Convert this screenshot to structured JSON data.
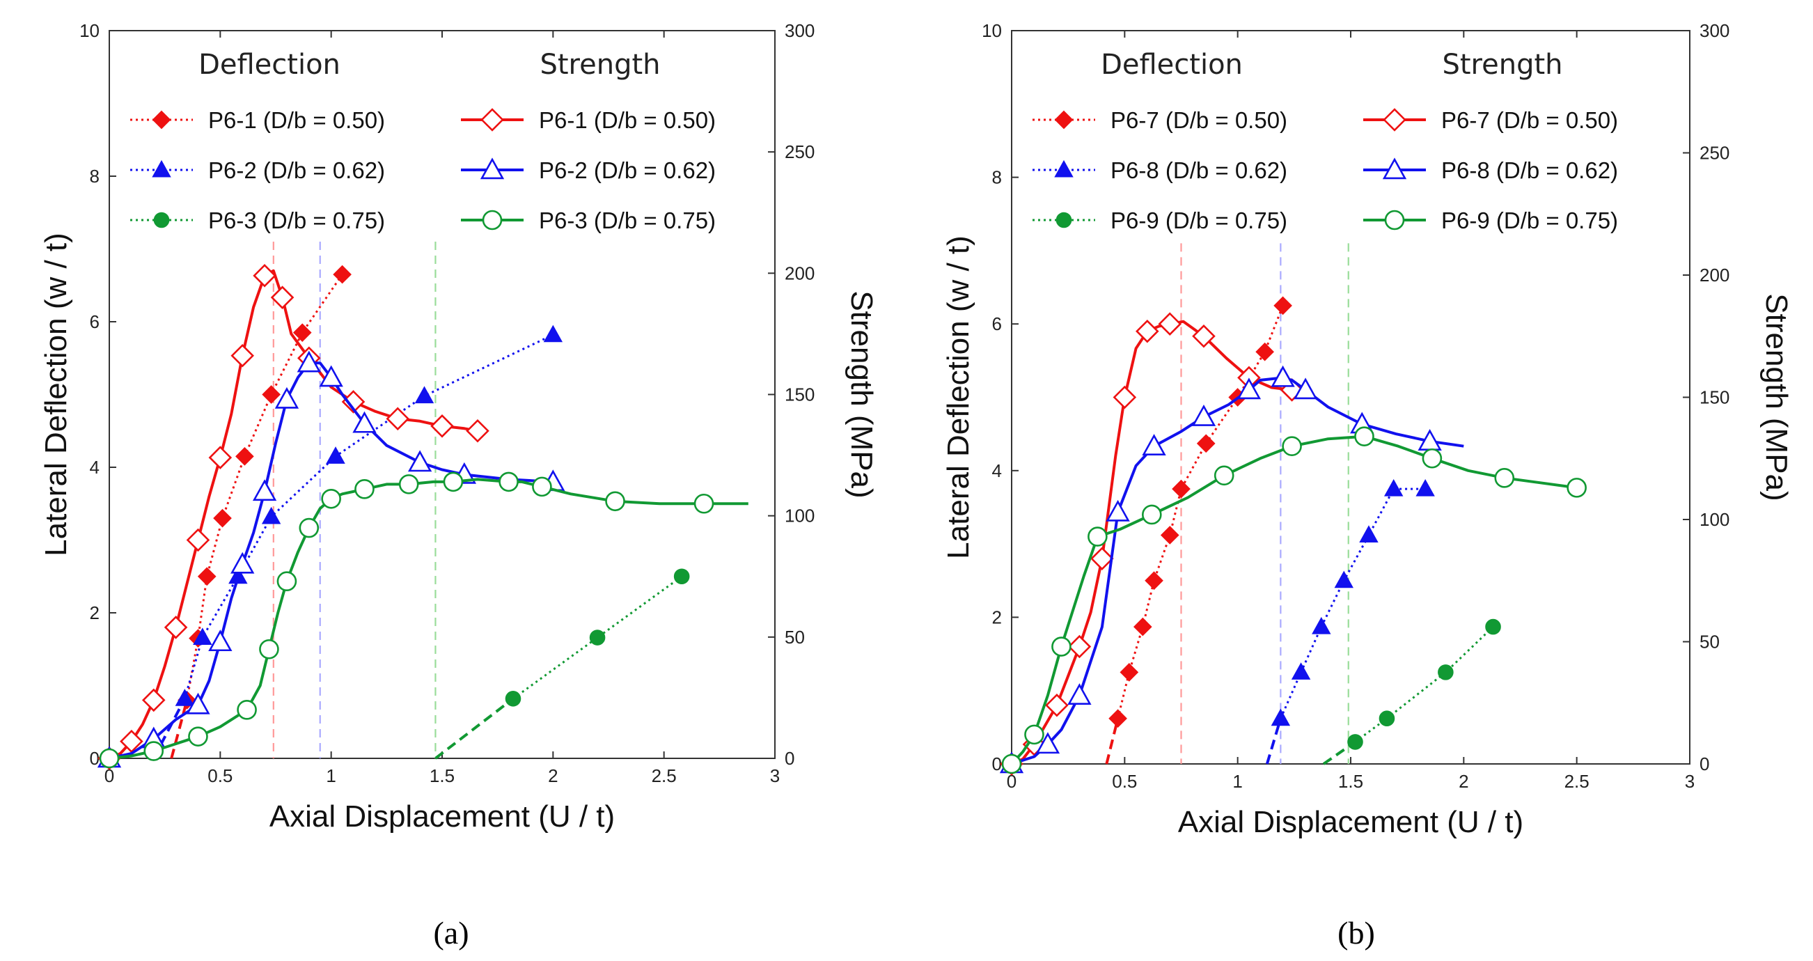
{
  "chart_data": [
    {
      "type": "line",
      "panel_label": "(a)",
      "panel_letter": "a",
      "xlabel": "Axial Displacement (U / t)",
      "ylabel": "Lateral Deflection (w / t)",
      "y2label": "Strength (MPa)",
      "xlim": [
        0,
        3
      ],
      "ylim": [
        0,
        10
      ],
      "y2lim": [
        0,
        300
      ],
      "xticks": [
        "0",
        "0.5",
        "1",
        "1.5",
        "2",
        "2.5",
        "3"
      ],
      "yticks": [
        "0",
        "2",
        "4",
        "6",
        "8",
        "10"
      ],
      "y2ticks": [
        "0",
        "50",
        "100",
        "150",
        "200",
        "250",
        "300"
      ],
      "legend_heading_deflection": "Deflection",
      "legend_heading_strength": "Strength",
      "vlines": [
        {
          "x": 0.74,
          "color": "#ff9999"
        },
        {
          "x": 0.95,
          "color": "#aaaaff"
        },
        {
          "x": 1.47,
          "color": "#99dd99"
        }
      ],
      "series": [
        {
          "name": "P6-1 (D/b = 0.50)",
          "kind": "deflection",
          "color": "#ee1111",
          "marker": "diamond",
          "filled": true,
          "x": [
            0.28,
            0.35,
            0.4,
            0.44,
            0.51,
            0.61,
            0.73,
            0.87,
            1.05
          ],
          "y": [
            0.0,
            0.8,
            1.65,
            2.5,
            3.3,
            4.15,
            5.0,
            5.85,
            6.65
          ]
        },
        {
          "name": "P6-2 (D/b = 0.62)",
          "kind": "deflection",
          "color": "#1111ee",
          "marker": "triangle",
          "filled": true,
          "x": [
            0.2,
            0.34,
            0.42,
            0.58,
            0.73,
            1.02,
            1.42,
            2.0
          ],
          "y": [
            0.0,
            0.82,
            1.66,
            2.5,
            3.32,
            4.15,
            4.98,
            5.82
          ]
        },
        {
          "name": "P6-3 (D/b = 0.75)",
          "kind": "deflection",
          "color": "#119933",
          "marker": "circle",
          "filled": true,
          "x": [
            1.47,
            1.82,
            2.2,
            2.58
          ],
          "y": [
            0.0,
            0.82,
            1.66,
            2.5
          ]
        },
        {
          "name": "P6-1 (D/b = 0.50)",
          "kind": "strength",
          "color": "#ee1111",
          "marker": "diamond",
          "filled": false,
          "x": [
            0.0,
            0.05,
            0.1,
            0.15,
            0.2,
            0.25,
            0.3,
            0.35,
            0.4,
            0.45,
            0.5,
            0.55,
            0.6,
            0.65,
            0.7,
            0.74,
            0.78,
            0.82,
            0.9,
            1.0,
            1.1,
            1.2,
            1.3,
            1.4,
            1.5,
            1.6,
            1.66
          ],
          "y": [
            0,
            2,
            7,
            14,
            24,
            38,
            54,
            72,
            90,
            108,
            124,
            142,
            166,
            186,
            199,
            201,
            190,
            175,
            165,
            153,
            147,
            143,
            140,
            139,
            137,
            136,
            135
          ]
        },
        {
          "name": "P6-2 (D/b = 0.62)",
          "kind": "strength",
          "color": "#1111ee",
          "marker": "triangle",
          "filled": false,
          "x": [
            0.0,
            0.1,
            0.2,
            0.3,
            0.4,
            0.45,
            0.5,
            0.55,
            0.6,
            0.65,
            0.7,
            0.75,
            0.8,
            0.85,
            0.9,
            0.95,
            1.0,
            1.05,
            1.15,
            1.25,
            1.4,
            1.5,
            1.6,
            1.8,
            2.0
          ],
          "y": [
            0,
            2,
            8,
            16,
            22,
            32,
            48,
            66,
            80,
            93,
            110,
            130,
            148,
            157,
            163,
            163,
            157,
            150,
            138,
            129,
            122,
            119,
            117,
            115,
            114
          ]
        },
        {
          "name": "P6-3 (D/b = 0.75)",
          "kind": "strength",
          "color": "#119933",
          "marker": "circle",
          "filled": false,
          "x": [
            0.0,
            0.1,
            0.2,
            0.3,
            0.4,
            0.5,
            0.62,
            0.68,
            0.72,
            0.76,
            0.8,
            0.85,
            0.9,
            0.95,
            1.0,
            1.05,
            1.15,
            1.25,
            1.35,
            1.46,
            1.55,
            1.66,
            1.8,
            1.86,
            1.95,
            2.08,
            2.28,
            2.48,
            2.68,
            2.88
          ],
          "y": [
            0,
            1,
            3,
            6,
            9,
            13,
            20,
            30,
            45,
            60,
            73,
            85,
            95,
            103,
            107,
            109,
            111,
            113,
            113,
            114,
            114,
            115,
            114,
            114,
            112,
            109,
            106,
            105,
            105,
            105
          ]
        }
      ]
    },
    {
      "type": "line",
      "panel_label": "(b)",
      "panel_letter": "b",
      "xlabel": "Axial Displacement (U / t)",
      "ylabel": "Lateral Deflection (w / t)",
      "y2label": "Strength (MPa)",
      "xlim": [
        0,
        3
      ],
      "ylim": [
        0,
        10
      ],
      "y2lim": [
        0,
        300
      ],
      "xticks": [
        "0",
        "0.5",
        "1",
        "1.5",
        "2",
        "2.5",
        "3"
      ],
      "yticks": [
        "0",
        "2",
        "4",
        "6",
        "8",
        "10"
      ],
      "y2ticks": [
        "0",
        "50",
        "100",
        "150",
        "200",
        "250",
        "300"
      ],
      "legend_heading_deflection": "Deflection",
      "legend_heading_strength": "Strength",
      "vlines": [
        {
          "x": 0.75,
          "color": "#ff9999"
        },
        {
          "x": 1.19,
          "color": "#aaaaff"
        },
        {
          "x": 1.49,
          "color": "#99dd99"
        }
      ],
      "series": [
        {
          "name": "P6-7 (D/b = 0.50)",
          "kind": "deflection",
          "color": "#ee1111",
          "marker": "diamond",
          "filled": true,
          "x": [
            0.42,
            0.47,
            0.52,
            0.58,
            0.63,
            0.7,
            0.75,
            0.86,
            1.0,
            1.12,
            1.2
          ],
          "y": [
            0.0,
            0.62,
            1.25,
            1.87,
            2.5,
            3.12,
            3.75,
            4.37,
            5.0,
            5.62,
            6.25
          ]
        },
        {
          "name": "P6-8 (D/b = 0.62)",
          "kind": "deflection",
          "color": "#1111ee",
          "marker": "triangle",
          "filled": true,
          "x": [
            1.13,
            1.19,
            1.28,
            1.37,
            1.47,
            1.58,
            1.69,
            1.83
          ],
          "y": [
            0.0,
            0.62,
            1.25,
            1.87,
            2.5,
            3.12,
            3.75,
            3.75
          ]
        },
        {
          "name": "P6-9 (D/b = 0.75)",
          "kind": "deflection",
          "color": "#119933",
          "marker": "circle",
          "filled": true,
          "x": [
            1.38,
            1.52,
            1.66,
            1.92,
            2.13
          ],
          "y": [
            0.0,
            0.3,
            0.62,
            1.25,
            1.87
          ]
        },
        {
          "name": "P6-7 (D/b = 0.50)",
          "kind": "strength",
          "color": "#ee1111",
          "marker": "diamond",
          "filled": false,
          "x": [
            0.0,
            0.05,
            0.1,
            0.15,
            0.2,
            0.25,
            0.3,
            0.35,
            0.4,
            0.46,
            0.5,
            0.55,
            0.6,
            0.65,
            0.7,
            0.76,
            0.85,
            0.95,
            1.05,
            1.15,
            1.24
          ],
          "y": [
            0,
            2,
            8,
            16,
            24,
            36,
            48,
            62,
            84,
            126,
            150,
            170,
            177,
            179,
            180,
            181,
            175,
            166,
            158,
            154,
            153
          ]
        },
        {
          "name": "P6-8 (D/b = 0.62)",
          "kind": "strength",
          "color": "#1111ee",
          "marker": "triangle",
          "filled": false,
          "x": [
            0.0,
            0.1,
            0.16,
            0.22,
            0.3,
            0.4,
            0.47,
            0.55,
            0.63,
            0.75,
            0.85,
            0.96,
            1.05,
            1.1,
            1.2,
            1.24,
            1.3,
            1.4,
            1.55,
            1.7,
            1.85,
            2.0
          ],
          "y": [
            0,
            3,
            8,
            14,
            28,
            56,
            103,
            122,
            130,
            136,
            142,
            147,
            153,
            157,
            158,
            157,
            153,
            146,
            139,
            135,
            132,
            130
          ]
        },
        {
          "name": "P6-9 (D/b = 0.75)",
          "kind": "strength",
          "color": "#119933",
          "marker": "circle",
          "filled": false,
          "x": [
            0.0,
            0.05,
            0.1,
            0.16,
            0.22,
            0.32,
            0.38,
            0.48,
            0.62,
            0.78,
            0.94,
            1.1,
            1.24,
            1.4,
            1.56,
            1.71,
            1.86,
            2.02,
            2.18,
            2.34,
            2.5
          ],
          "y": [
            0,
            5,
            12,
            28,
            48,
            77,
            93,
            96,
            102,
            109,
            118,
            125,
            130,
            133,
            134,
            130,
            125,
            120,
            117,
            115,
            113
          ]
        }
      ]
    }
  ]
}
